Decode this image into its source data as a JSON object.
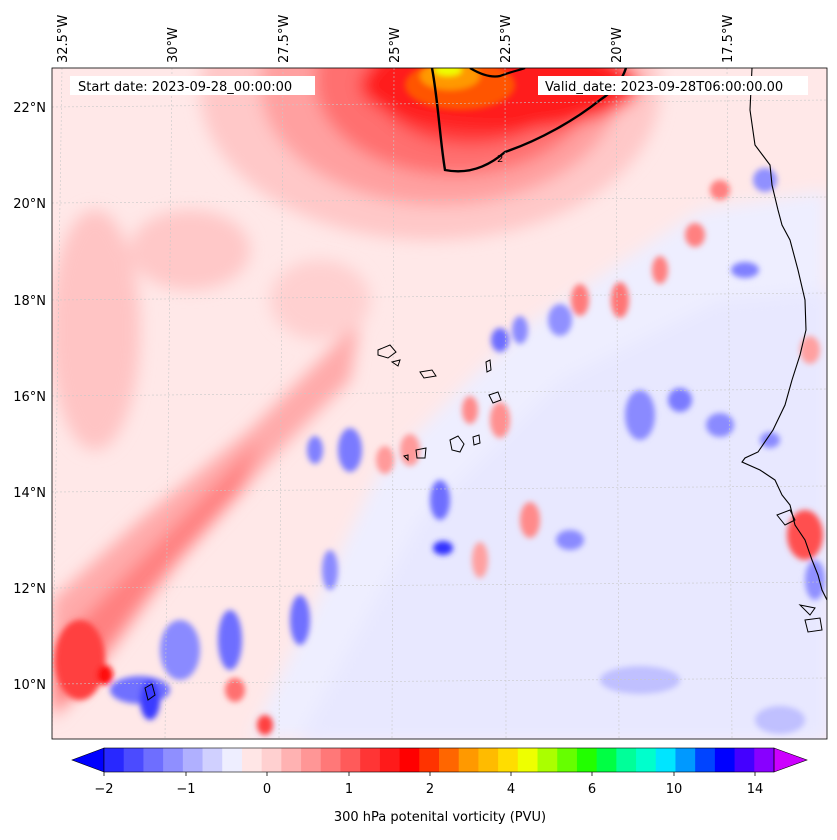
{
  "header": {
    "start_date": "Start date: 2023-09-28_00:00:00",
    "valid_date": "Valid_date: 2023-09-28T06:00:00.00"
  },
  "map": {
    "lon_labels": [
      "32.5°W",
      "30°W",
      "27.5°W",
      "25°W",
      "22.5°W",
      "20°W",
      "17.5°W"
    ],
    "lat_labels": [
      "22°N",
      "20°N",
      "18°N",
      "16°N",
      "14°N",
      "12°N",
      "10°N"
    ],
    "contour_label": "2",
    "field_name": "300 hPa potential vorticity"
  },
  "colorbar": {
    "tick_labels": [
      "−2",
      "−1",
      "0",
      "1",
      "2",
      "4",
      "6",
      "10",
      "14"
    ],
    "label": "300 hPa potenital vorticity (PVU)",
    "colors": [
      "#0000ff",
      "#2828ff",
      "#4b4bff",
      "#6e6eff",
      "#8f8fff",
      "#b0b0ff",
      "#d0d0ff",
      "#eeeeff",
      "#ffe6e6",
      "#ffd0d0",
      "#ffb2b2",
      "#ff9696",
      "#ff7878",
      "#ff5a5a",
      "#ff3535",
      "#ff1a1a",
      "#ff0000",
      "#ff3300",
      "#ff6600",
      "#ff9900",
      "#ffbb00",
      "#ffdd00",
      "#eeff00",
      "#aaff00",
      "#66ff00",
      "#22ff00",
      "#00ff44",
      "#00ff99",
      "#00ffcc",
      "#00e5ff",
      "#0099ff",
      "#0044ff",
      "#0000ff",
      "#4400ff",
      "#8800ff",
      "#cc00ff"
    ]
  }
}
